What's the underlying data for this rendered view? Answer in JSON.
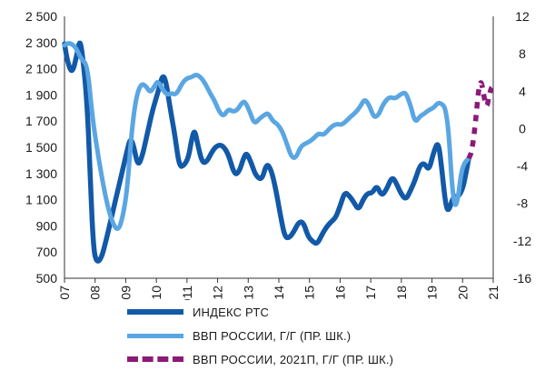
{
  "chart_data": {
    "type": "line",
    "x_range": [
      2007,
      2021
    ],
    "x_ticks": [
      "2007",
      "2008",
      "2009",
      "2010",
      "2011",
      "2012",
      "2013",
      "2014",
      "2015",
      "2016",
      "2017",
      "2018",
      "2019",
      "2020",
      "2021"
    ],
    "y_left": {
      "range": [
        500,
        2500
      ],
      "ticks": [
        "2 500",
        "2 300",
        "2 100",
        "1 900",
        "1 700",
        "1 500",
        "1 300",
        "1 100",
        "900",
        "700",
        "500"
      ]
    },
    "y_right": {
      "range": [
        -16,
        12
      ],
      "ticks": [
        "12",
        "8",
        "4",
        "0",
        "-4",
        "-8",
        "-12",
        "-16"
      ]
    },
    "grid": false,
    "legend_position": "bottom",
    "series": [
      {
        "name": "ИНДЕКС РТС",
        "axis": "left",
        "color": "#1259a8",
        "style": "solid",
        "points": [
          [
            2007.0,
            2290
          ],
          [
            2007.1,
            2150
          ],
          [
            2007.25,
            2060
          ],
          [
            2007.4,
            2200
          ],
          [
            2007.5,
            2330
          ],
          [
            2007.6,
            2190
          ],
          [
            2007.75,
            1800
          ],
          [
            2007.85,
            1200
          ],
          [
            2007.95,
            720
          ],
          [
            2008.05,
            620
          ],
          [
            2008.2,
            650
          ],
          [
            2008.35,
            780
          ],
          [
            2008.55,
            980
          ],
          [
            2008.75,
            1180
          ],
          [
            2008.95,
            1380
          ],
          [
            2009.05,
            1480
          ],
          [
            2009.15,
            1570
          ],
          [
            2009.25,
            1520
          ],
          [
            2009.4,
            1350
          ],
          [
            2009.55,
            1440
          ],
          [
            2009.7,
            1600
          ],
          [
            2009.85,
            1760
          ],
          [
            2010.0,
            1880
          ],
          [
            2010.1,
            1960
          ],
          [
            2010.2,
            2050
          ],
          [
            2010.3,
            2020
          ],
          [
            2010.45,
            1800
          ],
          [
            2010.6,
            1600
          ],
          [
            2010.75,
            1350
          ],
          [
            2010.9,
            1360
          ],
          [
            2011.05,
            1420
          ],
          [
            2011.15,
            1560
          ],
          [
            2011.25,
            1640
          ],
          [
            2011.35,
            1520
          ],
          [
            2011.5,
            1380
          ],
          [
            2011.65,
            1390
          ],
          [
            2011.8,
            1460
          ],
          [
            2011.95,
            1510
          ],
          [
            2012.15,
            1520
          ],
          [
            2012.35,
            1450
          ],
          [
            2012.55,
            1290
          ],
          [
            2012.7,
            1310
          ],
          [
            2012.85,
            1420
          ],
          [
            2012.95,
            1460
          ],
          [
            2013.1,
            1380
          ],
          [
            2013.25,
            1280
          ],
          [
            2013.45,
            1250
          ],
          [
            2013.6,
            1380
          ],
          [
            2013.75,
            1330
          ],
          [
            2013.9,
            1180
          ],
          [
            2014.05,
            980
          ],
          [
            2014.2,
            810
          ],
          [
            2014.35,
            810
          ],
          [
            2014.5,
            860
          ],
          [
            2014.65,
            930
          ],
          [
            2014.8,
            930
          ],
          [
            2014.95,
            820
          ],
          [
            2015.1,
            780
          ],
          [
            2015.25,
            760
          ],
          [
            2015.4,
            830
          ],
          [
            2015.55,
            890
          ],
          [
            2015.7,
            930
          ],
          [
            2015.85,
            960
          ],
          [
            2016.0,
            1050
          ],
          [
            2016.15,
            1160
          ],
          [
            2016.3,
            1130
          ],
          [
            2016.45,
            1080
          ],
          [
            2016.6,
            1020
          ],
          [
            2016.75,
            1100
          ],
          [
            2016.9,
            1150
          ],
          [
            2017.05,
            1150
          ],
          [
            2017.2,
            1210
          ],
          [
            2017.35,
            1130
          ],
          [
            2017.5,
            1170
          ],
          [
            2017.7,
            1280
          ],
          [
            2017.85,
            1220
          ],
          [
            2018.0,
            1140
          ],
          [
            2018.15,
            1100
          ],
          [
            2018.3,
            1170
          ],
          [
            2018.45,
            1250
          ],
          [
            2018.6,
            1360
          ],
          [
            2018.75,
            1380
          ],
          [
            2018.9,
            1320
          ],
          [
            2019.05,
            1460
          ],
          [
            2019.2,
            1550
          ],
          [
            2019.3,
            1380
          ],
          [
            2019.45,
            1050
          ],
          [
            2019.55,
            1010
          ],
          [
            2019.7,
            1130
          ],
          [
            2019.85,
            1120
          ],
          [
            2020.0,
            1180
          ],
          [
            2020.1,
            1290
          ],
          [
            2020.2,
            1410
          ]
        ]
      },
      {
        "name": "ВВП РОССИИ, Г/Г (ПР. ШК.)",
        "axis": "right",
        "color": "#5aa6e2",
        "style": "solid",
        "points": [
          [
            2007.0,
            8.9
          ],
          [
            2007.15,
            9.2
          ],
          [
            2007.35,
            8.8
          ],
          [
            2007.55,
            7.4
          ],
          [
            2007.75,
            6.8
          ],
          [
            2007.9,
            1.5
          ],
          [
            2008.1,
            -3.0
          ],
          [
            2008.35,
            -7.5
          ],
          [
            2008.55,
            -10.0
          ],
          [
            2008.75,
            -11.0
          ],
          [
            2008.9,
            -9.5
          ],
          [
            2009.05,
            -6.5
          ],
          [
            2009.2,
            0.0
          ],
          [
            2009.35,
            3.5
          ],
          [
            2009.5,
            4.8
          ],
          [
            2009.65,
            4.6
          ],
          [
            2009.8,
            3.8
          ],
          [
            2009.95,
            4.6
          ],
          [
            2010.05,
            5.1
          ],
          [
            2010.2,
            4.2
          ],
          [
            2010.35,
            3.6
          ],
          [
            2010.5,
            3.8
          ],
          [
            2010.65,
            3.6
          ],
          [
            2010.85,
            4.9
          ],
          [
            2011.0,
            5.4
          ],
          [
            2011.15,
            5.5
          ],
          [
            2011.3,
            5.8
          ],
          [
            2011.45,
            5.5
          ],
          [
            2011.6,
            4.8
          ],
          [
            2011.75,
            3.8
          ],
          [
            2011.9,
            3.0
          ],
          [
            2012.05,
            1.8
          ],
          [
            2012.2,
            1.3
          ],
          [
            2012.35,
            2.1
          ],
          [
            2012.5,
            1.8
          ],
          [
            2012.65,
            2.0
          ],
          [
            2012.8,
            2.8
          ],
          [
            2012.9,
            2.9
          ],
          [
            2013.05,
            1.8
          ],
          [
            2013.2,
            0.5
          ],
          [
            2013.35,
            1.0
          ],
          [
            2013.5,
            1.4
          ],
          [
            2013.65,
            1.7
          ],
          [
            2013.8,
            0.8
          ],
          [
            2013.95,
            0.5
          ],
          [
            2014.1,
            -0.2
          ],
          [
            2014.25,
            -1.5
          ],
          [
            2014.4,
            -3.0
          ],
          [
            2014.55,
            -3.2
          ],
          [
            2014.7,
            -2.0
          ],
          [
            2014.85,
            -1.6
          ],
          [
            2015.0,
            -1.4
          ],
          [
            2015.15,
            -1.0
          ],
          [
            2015.3,
            -0.5
          ],
          [
            2015.45,
            -0.7
          ],
          [
            2015.6,
            -0.2
          ],
          [
            2015.75,
            0.3
          ],
          [
            2015.9,
            0.5
          ],
          [
            2016.05,
            0.4
          ],
          [
            2016.2,
            0.8
          ],
          [
            2016.35,
            1.3
          ],
          [
            2016.5,
            1.7
          ],
          [
            2016.65,
            2.3
          ],
          [
            2016.8,
            3.2
          ],
          [
            2016.95,
            2.5
          ],
          [
            2017.1,
            1.2
          ],
          [
            2017.25,
            1.4
          ],
          [
            2017.4,
            2.6
          ],
          [
            2017.6,
            3.4
          ],
          [
            2017.8,
            3.2
          ],
          [
            2017.95,
            3.6
          ],
          [
            2018.05,
            3.8
          ],
          [
            2018.15,
            3.8
          ],
          [
            2018.3,
            2.5
          ],
          [
            2018.45,
            0.6
          ],
          [
            2018.6,
            1.3
          ],
          [
            2018.75,
            1.6
          ],
          [
            2018.9,
            2.0
          ],
          [
            2019.05,
            2.2
          ],
          [
            2019.2,
            2.8
          ],
          [
            2019.35,
            2.6
          ],
          [
            2019.45,
            2.0
          ],
          [
            2019.55,
            -0.5
          ],
          [
            2019.65,
            -6.0
          ],
          [
            2019.75,
            -8.5
          ],
          [
            2019.85,
            -7.5
          ],
          [
            2019.95,
            -4.8
          ],
          [
            2020.05,
            -3.7
          ],
          [
            2020.2,
            -3.2
          ]
        ]
      },
      {
        "name": "ВВП РОССИИ, 2021П, Г/Г (ПР. ШК.)",
        "axis": "right",
        "color": "#8b1a78",
        "style": "dashed",
        "points": [
          [
            2020.2,
            -3.2
          ],
          [
            2020.3,
            -2.5
          ],
          [
            2020.42,
            0.5
          ],
          [
            2020.52,
            4.2
          ],
          [
            2020.6,
            5.2
          ],
          [
            2020.68,
            3.8
          ],
          [
            2020.78,
            2.0
          ],
          [
            2020.88,
            3.8
          ],
          [
            2020.95,
            4.4
          ]
        ]
      }
    ]
  }
}
